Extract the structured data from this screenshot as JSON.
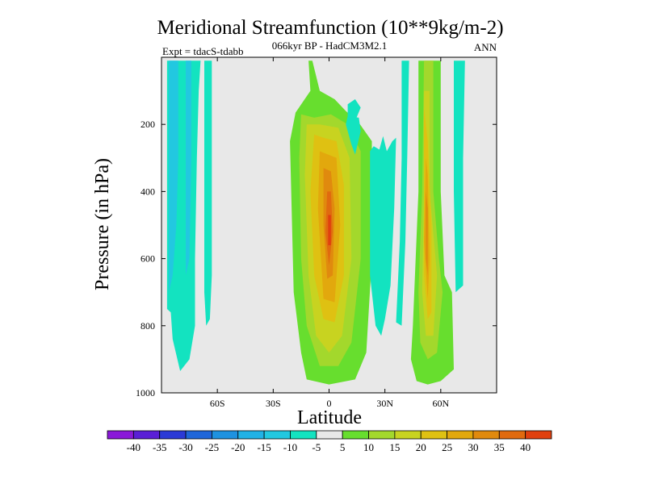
{
  "chart_data": {
    "type": "heatmap",
    "title": "Meridional Streamfunction (10**9kg/m-2)",
    "subtitle": "066kyr BP - HadCM3M2.1",
    "left_label": "Expt = tdacS-tdabb",
    "right_label": "ANN",
    "xlabel": "Latitude",
    "ylabel": "Pressure (in hPa)",
    "x_ticks": [
      {
        "value": -60,
        "label": "60S"
      },
      {
        "value": -30,
        "label": "30S"
      },
      {
        "value": 0,
        "label": "0"
      },
      {
        "value": 30,
        "label": "30N"
      },
      {
        "value": 60,
        "label": "60N"
      }
    ],
    "y_ticks": [
      {
        "value": 200,
        "label": "200"
      },
      {
        "value": 400,
        "label": "400"
      },
      {
        "value": 600,
        "label": "600"
      },
      {
        "value": 800,
        "label": "800"
      },
      {
        "value": 1000,
        "label": "1000"
      }
    ],
    "xlim": [
      -90,
      90
    ],
    "ylim": [
      1000,
      0
    ],
    "colorbar": {
      "colors": [
        "#8a19d8",
        "#5a1fd6",
        "#2b3ad6",
        "#1f66d9",
        "#1e92e0",
        "#20b2e6",
        "#22c8e0",
        "#13e3c0",
        "#e8e8e8",
        "#67de2e",
        "#a3d82c",
        "#c8d320",
        "#dfc112",
        "#e2a80d",
        "#e08a0e",
        "#e06a0f",
        "#e0400f"
      ],
      "labels": [
        "-40",
        "-35",
        "-30",
        "-25",
        "-20",
        "-15",
        "-10",
        "-5",
        "5",
        "10",
        "15",
        "20",
        "25",
        "30",
        "35",
        "40"
      ]
    },
    "regions": [
      {
        "level": "-5",
        "points": [
          [
            -87,
            10
          ],
          [
            -69,
            10
          ],
          [
            -70,
            100
          ],
          [
            -71,
            300
          ],
          [
            -72,
            600
          ],
          [
            -72,
            800
          ],
          [
            -75,
            900
          ],
          [
            -80,
            935
          ],
          [
            -84,
            840
          ],
          [
            -85,
            760
          ],
          [
            -87,
            750
          ]
        ]
      },
      {
        "level": "-10",
        "points": [
          [
            -86,
            10
          ],
          [
            -81,
            10
          ],
          [
            -81,
            300
          ],
          [
            -82,
            500
          ],
          [
            -84,
            650
          ],
          [
            -86,
            700
          ]
        ]
      },
      {
        "level": "-10",
        "points": [
          [
            -77,
            10
          ],
          [
            -74,
            10
          ],
          [
            -74,
            300
          ],
          [
            -75,
            600
          ],
          [
            -77,
            650
          ]
        ]
      },
      {
        "level": "-5",
        "points": [
          [
            -67,
            10
          ],
          [
            -63,
            10
          ],
          [
            -63,
            300
          ],
          [
            -63,
            650
          ],
          [
            -64,
            780
          ],
          [
            -66,
            800
          ],
          [
            -67,
            700
          ]
        ]
      },
      {
        "level": "5",
        "points": [
          [
            -11,
            10
          ],
          [
            -10,
            100
          ],
          [
            -18,
            165
          ],
          [
            -21,
            250
          ],
          [
            -19,
            700
          ],
          [
            -15,
            880
          ],
          [
            -12,
            960
          ],
          [
            0,
            975
          ],
          [
            14,
            960
          ],
          [
            20,
            880
          ],
          [
            23,
            600
          ],
          [
            23,
            250
          ],
          [
            16,
            195
          ],
          [
            9,
            160
          ],
          [
            3,
            125
          ],
          [
            -5,
            100
          ],
          [
            -9,
            10
          ]
        ]
      },
      {
        "level": "10",
        "points": [
          [
            -15,
            170
          ],
          [
            -16,
            300
          ],
          [
            -15,
            600
          ],
          [
            -12,
            800
          ],
          [
            -5,
            920
          ],
          [
            5,
            920
          ],
          [
            12,
            850
          ],
          [
            17,
            600
          ],
          [
            17,
            280
          ],
          [
            10,
            200
          ],
          [
            1,
            170
          ],
          [
            -8,
            180
          ]
        ]
      },
      {
        "level": "15",
        "points": [
          [
            -12,
            200
          ],
          [
            -13,
            350
          ],
          [
            -11,
            650
          ],
          [
            -7,
            830
          ],
          [
            0,
            880
          ],
          [
            7,
            830
          ],
          [
            12,
            600
          ],
          [
            11,
            300
          ],
          [
            5,
            210
          ],
          [
            -5,
            200
          ]
        ]
      },
      {
        "level": "20",
        "points": [
          [
            -8,
            230
          ],
          [
            -10,
            400
          ],
          [
            -8,
            650
          ],
          [
            -3,
            780
          ],
          [
            3,
            790
          ],
          [
            8,
            650
          ],
          [
            8,
            380
          ],
          [
            4,
            250
          ],
          [
            -3,
            240
          ]
        ]
      },
      {
        "level": "25",
        "points": [
          [
            -5,
            280
          ],
          [
            -6,
            450
          ],
          [
            -3,
            720
          ],
          [
            3,
            730
          ],
          [
            6,
            500
          ],
          [
            4,
            300
          ]
        ]
      },
      {
        "level": "30",
        "points": [
          [
            -3,
            330
          ],
          [
            -3,
            500
          ],
          [
            -1,
            660
          ],
          [
            2,
            650
          ],
          [
            3,
            450
          ],
          [
            1,
            340
          ]
        ]
      },
      {
        "level": "35",
        "points": [
          [
            -1,
            400
          ],
          [
            -2,
            520
          ],
          [
            0,
            620
          ],
          [
            2,
            520
          ],
          [
            1,
            400
          ]
        ]
      },
      {
        "level": "40",
        "points": [
          [
            -0.5,
            470
          ],
          [
            -0.5,
            560
          ],
          [
            1,
            560
          ],
          [
            1,
            470
          ]
        ]
      },
      {
        "level": "-5",
        "points": [
          [
            10,
            175
          ],
          [
            9,
            200
          ],
          [
            12,
            260
          ],
          [
            14,
            290
          ],
          [
            17,
            220
          ],
          [
            16,
            180
          ]
        ]
      },
      {
        "level": "-5",
        "points": [
          [
            10,
            140
          ],
          [
            10,
            185
          ],
          [
            14,
            190
          ],
          [
            17,
            150
          ],
          [
            14,
            125
          ]
        ]
      },
      {
        "level": "-5",
        "points": [
          [
            22,
            280
          ],
          [
            22,
            650
          ],
          [
            25,
            800
          ],
          [
            28,
            830
          ],
          [
            30,
            780
          ],
          [
            33,
            680
          ],
          [
            35,
            450
          ],
          [
            36,
            240
          ],
          [
            34,
            250
          ],
          [
            31,
            280
          ],
          [
            29,
            235
          ],
          [
            27,
            275
          ],
          [
            24,
            265
          ]
        ]
      },
      {
        "level": "-5",
        "points": [
          [
            39,
            10
          ],
          [
            39,
            300
          ],
          [
            38,
            550
          ],
          [
            36,
            790
          ],
          [
            39,
            800
          ],
          [
            41,
            550
          ],
          [
            42,
            300
          ],
          [
            43,
            10
          ]
        ]
      },
      {
        "level": "5",
        "points": [
          [
            48,
            10
          ],
          [
            48,
            400
          ],
          [
            45,
            800
          ],
          [
            44,
            900
          ],
          [
            47,
            965
          ],
          [
            53,
            975
          ],
          [
            60,
            965
          ],
          [
            67,
            930
          ],
          [
            66,
            700
          ],
          [
            62,
            650
          ],
          [
            60,
            400
          ],
          [
            60,
            10
          ]
        ]
      },
      {
        "level": "10",
        "points": [
          [
            51,
            10
          ],
          [
            50,
            400
          ],
          [
            48,
            700
          ],
          [
            49,
            850
          ],
          [
            53,
            900
          ],
          [
            58,
            880
          ],
          [
            61,
            700
          ],
          [
            59,
            600
          ],
          [
            56,
            400
          ],
          [
            56,
            10
          ]
        ]
      },
      {
        "level": "15",
        "points": [
          [
            51,
            100
          ],
          [
            51,
            400
          ],
          [
            50,
            700
          ],
          [
            52,
            830
          ],
          [
            56,
            830
          ],
          [
            58,
            650
          ],
          [
            54,
            400
          ],
          [
            54,
            100
          ]
        ]
      },
      {
        "level": "20",
        "points": [
          [
            51,
            150
          ],
          [
            51,
            400
          ],
          [
            51,
            650
          ],
          [
            53,
            780
          ],
          [
            55,
            760
          ],
          [
            55,
            500
          ],
          [
            53,
            250
          ]
        ]
      },
      {
        "level": "25",
        "points": [
          [
            52,
            300
          ],
          [
            51,
            550
          ],
          [
            53,
            720
          ],
          [
            54,
            600
          ],
          [
            53,
            350
          ]
        ]
      },
      {
        "level": "30",
        "points": [
          [
            52,
            400
          ],
          [
            52,
            600
          ],
          [
            53,
            650
          ],
          [
            53,
            450
          ]
        ]
      },
      {
        "level": "-5",
        "points": [
          [
            67,
            10
          ],
          [
            67,
            400
          ],
          [
            68,
            700
          ],
          [
            72,
            680
          ],
          [
            72,
            300
          ],
          [
            73,
            10
          ]
        ]
      }
    ]
  }
}
